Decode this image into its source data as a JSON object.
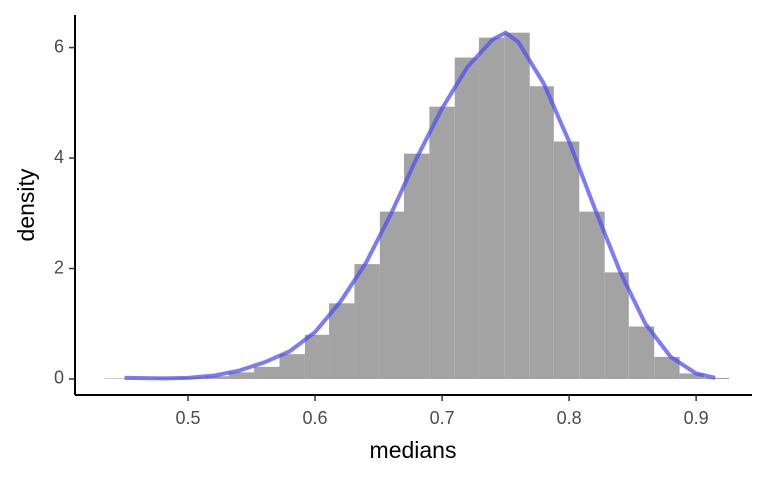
{
  "chart_data": {
    "type": "histogram",
    "x_label": "medians",
    "y_label": "density",
    "bins": [
      0.434,
      0.454,
      0.474,
      0.493,
      0.513,
      0.532,
      0.552,
      0.572,
      0.592,
      0.611,
      0.631,
      0.651,
      0.67,
      0.69,
      0.71,
      0.729,
      0.749,
      0.769,
      0.788,
      0.808,
      0.828,
      0.847,
      0.867,
      0.887,
      0.906,
      0.926
    ],
    "values": [
      0.01,
      0.01,
      0.02,
      0.03,
      0.05,
      0.12,
      0.22,
      0.45,
      0.8,
      1.37,
      2.08,
      3.03,
      4.08,
      4.93,
      5.82,
      6.18,
      6.27,
      5.3,
      4.3,
      3.03,
      1.93,
      0.95,
      0.4,
      0.1,
      0.02
    ],
    "color": "#a3a3a3",
    "density_curve": {
      "color": "#5050f0",
      "x": [
        0.45,
        0.48,
        0.5,
        0.52,
        0.54,
        0.56,
        0.58,
        0.6,
        0.62,
        0.64,
        0.66,
        0.68,
        0.7,
        0.72,
        0.74,
        0.75,
        0.76,
        0.78,
        0.8,
        0.82,
        0.84,
        0.86,
        0.88,
        0.9,
        0.915
      ],
      "values": [
        0.02,
        0.01,
        0.02,
        0.06,
        0.15,
        0.3,
        0.5,
        0.85,
        1.4,
        2.1,
        3.0,
        4.0,
        4.9,
        5.65,
        6.15,
        6.27,
        6.1,
        5.35,
        4.3,
        3.1,
        1.95,
        1.0,
        0.4,
        0.1,
        0.02
      ]
    },
    "xlim": [
      0.411,
      0.944
    ],
    "ylim": [
      -0.29,
      6.59
    ],
    "xticks": [
      0.5,
      0.6,
      0.7,
      0.8,
      0.9
    ],
    "yticks": [
      0,
      2,
      4,
      6
    ]
  }
}
